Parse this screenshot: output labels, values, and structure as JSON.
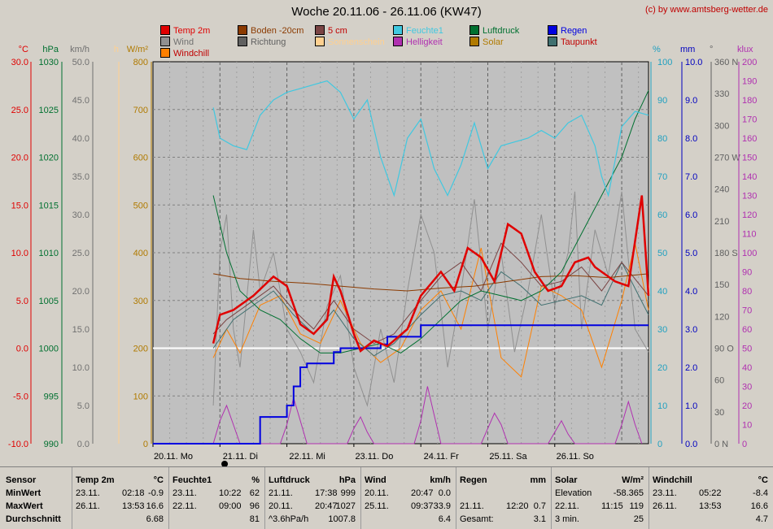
{
  "title": "Woche 20.11.06 - 26.11.06 (KW47)",
  "copyright": "(c) by www.amtsberg-wetter.de",
  "colors": {
    "temp": "#e00000",
    "boden": "#8b3a00",
    "cm5": "#7a4444",
    "feuchte": "#40c8e0",
    "luftdruck": "#007030",
    "regen": "#0000e0",
    "wind": "#909090",
    "richtung": "#606060",
    "sonnenschein": "#ffd090",
    "helligkeit": "#b030b0",
    "solar": "#b07a00",
    "taupunkt": "#407070",
    "windchill": "#ff8000",
    "plot_bg": "#c0c0c0"
  },
  "legend": [
    {
      "label": "Temp 2m",
      "color": "#e00000"
    },
    {
      "label": "Boden -20cm",
      "color": "#8b3a00"
    },
    {
      "label": "5 cm",
      "color": "#7a4444"
    },
    {
      "label": "Feuchte1",
      "color": "#40c8e0"
    },
    {
      "label": "Luftdruck",
      "color": "#007030"
    },
    {
      "label": "Regen",
      "color": "#0000e0"
    },
    {
      "label": "Wind",
      "color": "#909090"
    },
    {
      "label": "Richtung",
      "color": "#606060"
    },
    {
      "label": "Sonnenschein",
      "color": "#ffd090"
    },
    {
      "label": "Helligkeit",
      "color": "#b030b0"
    },
    {
      "label": "Solar",
      "color": "#b07a00"
    },
    {
      "label": "Taupunkt",
      "color": "#407070"
    },
    {
      "label": "Windchill",
      "color": "#ff8000"
    }
  ],
  "chart_data": {
    "type": "line",
    "title": "Woche 20.11.06 - 26.11.06 (KW47)",
    "grid": true,
    "x_tick_labels": [
      "20.11. Mo",
      "21.11. Di",
      "22.11. Mi",
      "23.11. Do",
      "24.11. Fr",
      "25.11. Sa",
      "26.11. So"
    ],
    "axes": {
      "temp_c": {
        "unit": "°C",
        "range": [
          -10,
          30
        ],
        "ticks": [
          "30.0",
          "25.0",
          "20.0",
          "15.0",
          "10.0",
          "5.0",
          "0.0",
          "-5.0",
          "-10.0"
        ]
      },
      "pressure_hpa": {
        "unit": "hPa",
        "range": [
          990,
          1030
        ],
        "ticks": [
          "1030",
          "1025",
          "1020",
          "1015",
          "1010",
          "1005",
          "1000",
          "995",
          "990"
        ]
      },
      "wind_kmh": {
        "unit": "km/h",
        "range": [
          0,
          50
        ],
        "ticks": [
          "50.0",
          "45.0",
          "40.0",
          "35.0",
          "30.0",
          "25.0",
          "20.0",
          "15.0",
          "10.0",
          "5.0",
          "0.0"
        ]
      },
      "sun_h": {
        "unit": "h",
        "range": [
          0,
          1
        ]
      },
      "solar_wm2": {
        "unit": "W/m²",
        "range": [
          0,
          800
        ],
        "ticks": [
          "800",
          "700",
          "600",
          "500",
          "400",
          "300",
          "200",
          "100",
          "0"
        ]
      },
      "humidity_pct": {
        "unit": "%",
        "range": [
          0,
          100
        ],
        "ticks": [
          "100",
          "90",
          "80",
          "70",
          "60",
          "50",
          "40",
          "30",
          "20",
          "10",
          "0"
        ]
      },
      "rain_mm": {
        "unit": "mm",
        "range": [
          0,
          10
        ],
        "ticks": [
          "10.0",
          "9.0",
          "8.0",
          "7.0",
          "6.0",
          "5.0",
          "4.0",
          "3.0",
          "2.0",
          "1.0",
          "0.0"
        ]
      },
      "direction_deg": {
        "unit": "°",
        "range": [
          0,
          360
        ],
        "ticks": [
          "360 N",
          "330",
          "300",
          "270 W",
          "240",
          "210",
          "180 S",
          "150",
          "120",
          "90 O",
          "60",
          "30",
          "0 N"
        ]
      },
      "light_klux": {
        "unit": "klux",
        "range": [
          0,
          200
        ],
        "ticks": [
          "200",
          "190",
          "180",
          "170",
          "160",
          "150",
          "140",
          "130",
          "120",
          "110",
          "100",
          "90",
          "80",
          "70",
          "60",
          "50",
          "40",
          "30",
          "20",
          "10",
          "0"
        ]
      }
    },
    "x_range_days": [
      0,
      7.4
    ],
    "series": [
      {
        "name": "Temp 2m",
        "axis": "temp_c",
        "x": [
          0.9,
          1.0,
          1.2,
          1.5,
          1.8,
          2.0,
          2.2,
          2.4,
          2.6,
          2.7,
          2.8,
          3.0,
          3.1,
          3.3,
          3.5,
          3.8,
          4.0,
          4.3,
          4.5,
          4.7,
          4.9,
          5.1,
          5.3,
          5.5,
          5.7,
          5.9,
          6.1,
          6.3,
          6.5,
          6.6,
          6.7,
          6.9,
          7.1,
          7.3,
          7.4
        ],
        "y": [
          0.5,
          3.5,
          4.0,
          5.5,
          7.5,
          6.5,
          2.5,
          1.5,
          3.0,
          7.5,
          6.0,
          1.5,
          -0.3,
          0.8,
          0.2,
          2.0,
          5.5,
          8.0,
          6.0,
          10.5,
          9.5,
          7.0,
          13.0,
          12.0,
          8.0,
          6.0,
          6.5,
          9.0,
          9.5,
          8.5,
          8.0,
          7.0,
          6.5,
          16.0,
          5.5
        ]
      },
      {
        "name": "Boden -20cm",
        "axis": "temp_c",
        "x": [
          0.9,
          1.3,
          1.8,
          2.3,
          2.8,
          3.3,
          3.8,
          4.3,
          4.8,
          5.3,
          5.8,
          6.3,
          6.8,
          7.4
        ],
        "y": [
          7.8,
          7.3,
          7.0,
          6.8,
          6.5,
          6.2,
          6.0,
          6.3,
          6.5,
          7.0,
          7.5,
          7.6,
          7.4,
          7.8
        ]
      },
      {
        "name": "5 cm",
        "axis": "temp_c",
        "x": [
          0.9,
          1.1,
          1.5,
          1.8,
          2.1,
          2.4,
          2.7,
          3.0,
          3.3,
          3.6,
          4.0,
          4.3,
          4.6,
          4.9,
          5.2,
          5.5,
          5.8,
          6.1,
          6.4,
          6.7,
          7.0,
          7.4
        ],
        "y": [
          1.5,
          3.0,
          5.0,
          6.5,
          4.0,
          2.0,
          5.0,
          2.0,
          0.5,
          1.5,
          5.0,
          7.5,
          9.0,
          6.0,
          11.0,
          9.0,
          6.5,
          7.0,
          8.5,
          6.0,
          9.0,
          5.5
        ]
      },
      {
        "name": "Feuchte1",
        "axis": "humidity_pct",
        "x": [
          0.9,
          1.0,
          1.2,
          1.4,
          1.6,
          1.8,
          2.0,
          2.2,
          2.4,
          2.6,
          2.8,
          3.0,
          3.2,
          3.4,
          3.6,
          3.8,
          4.0,
          4.2,
          4.4,
          4.6,
          4.8,
          5.0,
          5.2,
          5.4,
          5.6,
          5.8,
          6.0,
          6.2,
          6.4,
          6.6,
          6.7,
          6.8,
          7.0,
          7.2,
          7.4
        ],
        "y": [
          88,
          80,
          78,
          77,
          86,
          90,
          92,
          93,
          94,
          95,
          92,
          85,
          90,
          75,
          65,
          80,
          85,
          72,
          65,
          73,
          84,
          72,
          78,
          79,
          80,
          82,
          80,
          84,
          86,
          78,
          70,
          65,
          83,
          87,
          86
        ]
      },
      {
        "name": "Luftdruck",
        "axis": "pressure_hpa",
        "x": [
          0.9,
          1.1,
          1.3,
          1.6,
          1.9,
          2.2,
          2.5,
          2.8,
          3.1,
          3.4,
          3.7,
          4.0,
          4.3,
          4.6,
          4.9,
          5.2,
          5.5,
          5.8,
          6.1,
          6.4,
          6.7,
          7.0,
          7.2,
          7.4
        ],
        "y": [
          1016,
          1010,
          1006,
          1004,
          1003,
          1001,
          999.5,
          999.5,
          1000,
          1000.5,
          999.5,
          1001,
          1003,
          1005,
          1006,
          1005.5,
          1005,
          1006,
          1008,
          1012,
          1016,
          1020,
          1024,
          1027
        ]
      },
      {
        "name": "Regen",
        "axis": "rain_mm",
        "x": [
          0.0,
          1.1,
          1.6,
          1.9,
          2.0,
          2.1,
          2.2,
          2.3,
          2.6,
          2.7,
          2.8,
          3.2,
          3.4,
          3.5,
          3.9,
          4.0,
          7.4
        ],
        "y": [
          0,
          0,
          0.7,
          0.7,
          1.0,
          1.5,
          2.0,
          2.1,
          2.1,
          2.4,
          2.5,
          2.5,
          2.6,
          2.8,
          2.8,
          3.1,
          3.1
        ]
      },
      {
        "name": "Wind",
        "axis": "wind_kmh",
        "x": [
          0.9,
          1.0,
          1.1,
          1.2,
          1.3,
          1.5,
          1.6,
          1.8,
          2.0,
          2.2,
          2.4,
          2.6,
          2.8,
          3.0,
          3.2,
          3.4,
          3.6,
          3.8,
          4.0,
          4.2,
          4.4,
          4.6,
          4.8,
          5.0,
          5.2,
          5.4,
          5.6,
          5.8,
          6.0,
          6.2,
          6.3,
          6.4,
          6.6,
          6.8,
          7.0,
          7.2,
          7.4
        ],
        "y": [
          5,
          25,
          30,
          15,
          10,
          28,
          20,
          25,
          15,
          12,
          8,
          18,
          22,
          10,
          5,
          15,
          8,
          20,
          30,
          25,
          10,
          20,
          32,
          15,
          25,
          12,
          20,
          30,
          18,
          25,
          33,
          15,
          28,
          22,
          33,
          15,
          12
        ]
      },
      {
        "name": "Helligkeit",
        "axis": "light_klux",
        "x": [
          0.9,
          1.0,
          1.1,
          1.2,
          1.3,
          1.9,
          2.0,
          2.1,
          2.2,
          2.3,
          2.9,
          3.0,
          3.1,
          3.2,
          3.3,
          3.9,
          4.0,
          4.1,
          4.2,
          4.3,
          4.9,
          5.0,
          5.1,
          5.2,
          5.3,
          5.9,
          6.0,
          6.1,
          6.2,
          6.3,
          6.9,
          7.0,
          7.1,
          7.2,
          7.3
        ],
        "y": [
          0,
          12,
          20,
          10,
          0,
          0,
          10,
          24,
          12,
          0,
          0,
          8,
          14,
          6,
          0,
          0,
          12,
          30,
          15,
          0,
          0,
          8,
          16,
          10,
          0,
          0,
          6,
          12,
          5,
          0,
          0,
          10,
          22,
          10,
          0
        ]
      },
      {
        "name": "Taupunkt",
        "axis": "temp_c",
        "x": [
          0.9,
          1.2,
          1.5,
          1.8,
          2.1,
          2.4,
          2.7,
          3.0,
          3.3,
          3.6,
          4.0,
          4.3,
          4.6,
          4.9,
          5.2,
          5.5,
          5.8,
          6.1,
          6.4,
          6.7,
          7.0,
          7.4
        ],
        "y": [
          0.0,
          3.0,
          4.5,
          6.0,
          3.5,
          1.5,
          4.0,
          1.0,
          -0.8,
          0.5,
          3.5,
          5.5,
          6.0,
          5.0,
          8.0,
          6.5,
          4.5,
          5.0,
          5.5,
          4.5,
          9.0,
          3.5
        ]
      },
      {
        "name": "Windchill",
        "axis": "temp_c",
        "x": [
          0.9,
          1.1,
          1.3,
          1.6,
          1.9,
          2.2,
          2.5,
          2.8,
          3.1,
          3.4,
          3.7,
          4.0,
          4.3,
          4.6,
          4.9,
          5.2,
          5.5,
          5.8,
          6.1,
          6.4,
          6.7,
          7.0,
          7.2,
          7.4
        ],
        "y": [
          -1,
          2,
          -0.5,
          4.5,
          5.5,
          1.5,
          0.5,
          5.0,
          0.5,
          -1.5,
          0,
          4.0,
          6.0,
          2.0,
          10.5,
          -1.0,
          -3.0,
          6.5,
          5.5,
          4.0,
          -2.0,
          5.0,
          11.0,
          4.0
        ]
      }
    ]
  },
  "stats": {
    "row_labels": [
      "Sensor",
      "MinWert",
      "MaxWert",
      "Durchschnitt"
    ],
    "columns": [
      {
        "name": "Temp 2m",
        "unit": "°C",
        "rows": [
          [
            "23.11.",
            "02:18",
            "-0.9"
          ],
          [
            "26.11.",
            "13:53",
            "16.6"
          ],
          [
            "",
            "",
            "6.68"
          ]
        ]
      },
      {
        "name": "Feuchte1",
        "unit": "%",
        "rows": [
          [
            "23.11.",
            "10:22",
            "62"
          ],
          [
            "22.11.",
            "09:00",
            "96"
          ],
          [
            "",
            "",
            "81"
          ]
        ]
      },
      {
        "name": "Luftdruck",
        "unit": "hPa",
        "rows": [
          [
            "21.11.",
            "17:38",
            "999"
          ],
          [
            "20.11.",
            "20:47",
            "1027"
          ],
          [
            "^3.6hPa/h",
            "",
            "1007.8"
          ]
        ]
      },
      {
        "name": "Wind",
        "unit": "km/h",
        "rows": [
          [
            "20.11.",
            "20:47",
            "0.0"
          ],
          [
            "25.11.",
            "09:37",
            "33.9"
          ],
          [
            "",
            "",
            "6.4"
          ]
        ]
      },
      {
        "name": "Regen",
        "unit": "mm",
        "rows": [
          [
            "",
            "",
            ""
          ],
          [
            "21.11.",
            "12:20",
            "0.7"
          ],
          [
            "Gesamt:",
            "",
            "3.1"
          ]
        ]
      },
      {
        "name": "Solar",
        "unit": "W/m²",
        "rows": [
          [
            "Elevation",
            "",
            "-58.365"
          ],
          [
            "22.11.",
            "11:15",
            "119"
          ],
          [
            "3 min.",
            "",
            "25"
          ]
        ]
      },
      {
        "name": "Windchill",
        "unit": "°C",
        "rows": [
          [
            "23.11.",
            "05:22",
            "-8.4"
          ],
          [
            "26.11.",
            "13:53",
            "16.6"
          ],
          [
            "",
            "",
            "4.7"
          ]
        ]
      }
    ]
  }
}
